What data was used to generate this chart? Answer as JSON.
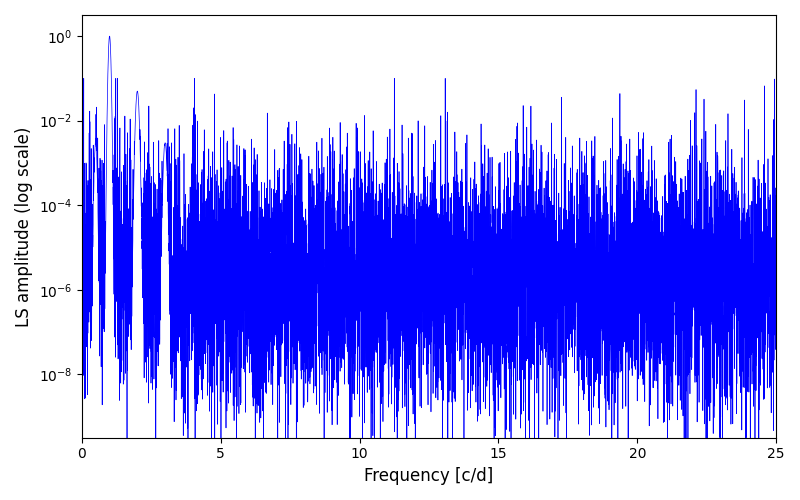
{
  "xlabel": "Frequency [c/d]",
  "ylabel": "LS amplitude (log scale)",
  "line_color": "#0000ff",
  "line_width": 0.5,
  "xlim": [
    0,
    25
  ],
  "ylim_log": [
    -9.5,
    0.5
  ],
  "background_color": "#ffffff",
  "seed": 12345,
  "n_points": 8000,
  "freq_max": 25.0,
  "peak_freq": 1.0,
  "peak_amplitude": 1.0,
  "secondary_peak_freq": 2.0,
  "secondary_peak_amplitude": 0.05,
  "tertiary_peak_freq": 3.0,
  "tertiary_peak_amplitude": 0.003,
  "sub_peak_freq": 0.5,
  "sub_peak_amplitude": 0.003
}
